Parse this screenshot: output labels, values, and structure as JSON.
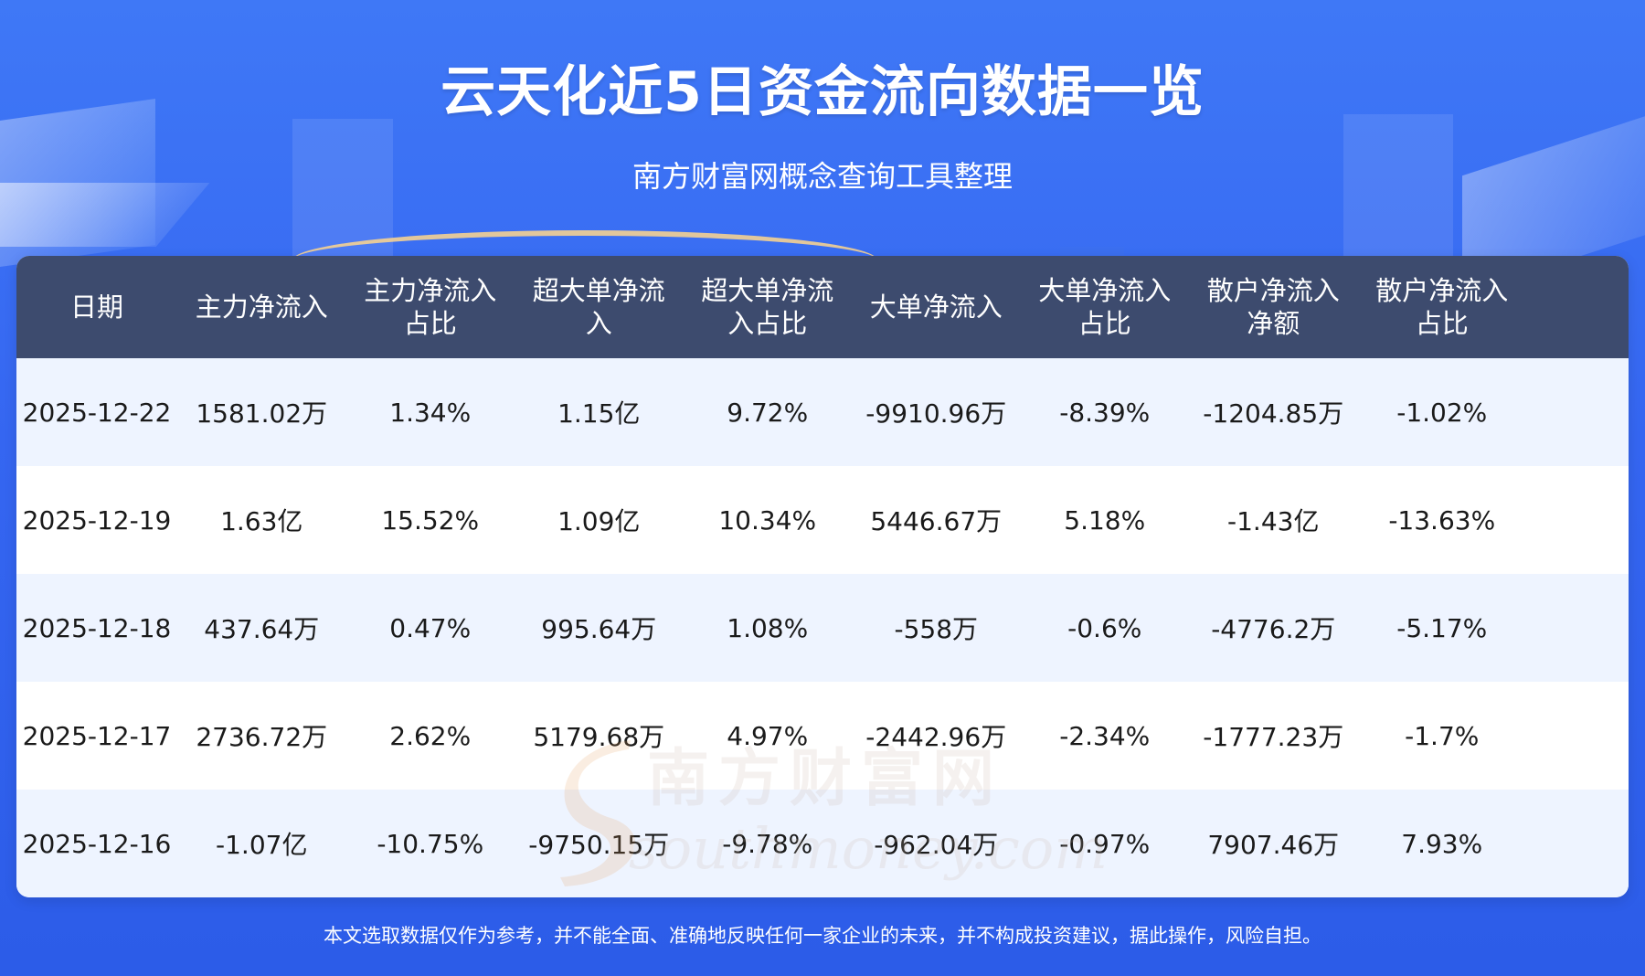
{
  "header": {
    "title": "云天化近5日资金流向数据一览",
    "subtitle": "南方财富网概念查询工具整理"
  },
  "table": {
    "columns": [
      [
        "日期"
      ],
      [
        "主力净流入"
      ],
      [
        "主力净流入",
        "占比"
      ],
      [
        "超大单净流",
        "入"
      ],
      [
        "超大单净流",
        "入占比"
      ],
      [
        "大单净流入"
      ],
      [
        "大单净流入",
        "占比"
      ],
      [
        "散户净流入",
        "净额"
      ],
      [
        "散户净流入",
        "占比"
      ]
    ],
    "rows": [
      [
        "2025-12-22",
        "1581.02万",
        "1.34%",
        "1.15亿",
        "9.72%",
        "-9910.96万",
        "-8.39%",
        "-1204.85万",
        "-1.02%"
      ],
      [
        "2025-12-19",
        "1.63亿",
        "15.52%",
        "1.09亿",
        "10.34%",
        "5446.67万",
        "5.18%",
        "-1.43亿",
        "-13.63%"
      ],
      [
        "2025-12-18",
        "437.64万",
        "0.47%",
        "995.64万",
        "1.08%",
        "-558万",
        "-0.6%",
        "-4776.2万",
        "-5.17%"
      ],
      [
        "2025-12-17",
        "2736.72万",
        "2.62%",
        "5179.68万",
        "4.97%",
        "-2442.96万",
        "-2.34%",
        "-1777.23万",
        "-1.7%"
      ],
      [
        "2025-12-16",
        "-1.07亿",
        "-10.75%",
        "-9750.15万",
        "-9.78%",
        "-962.04万",
        "-0.97%",
        "7907.46万",
        "7.93%"
      ]
    ]
  },
  "watermark": {
    "cn": "南方财富网",
    "en": "southmoney.com"
  },
  "footer": {
    "disclaimer": "本文选取数据仅作为参考，并不能全面、准确地反映任何一家企业的未来，并不构成投资建议，据此操作，风险自担。"
  },
  "colors": {
    "background": "#3566f1",
    "table_header": "#3d4b6e",
    "row_alt": "#eef4ff",
    "watermark": "#e8a060"
  }
}
